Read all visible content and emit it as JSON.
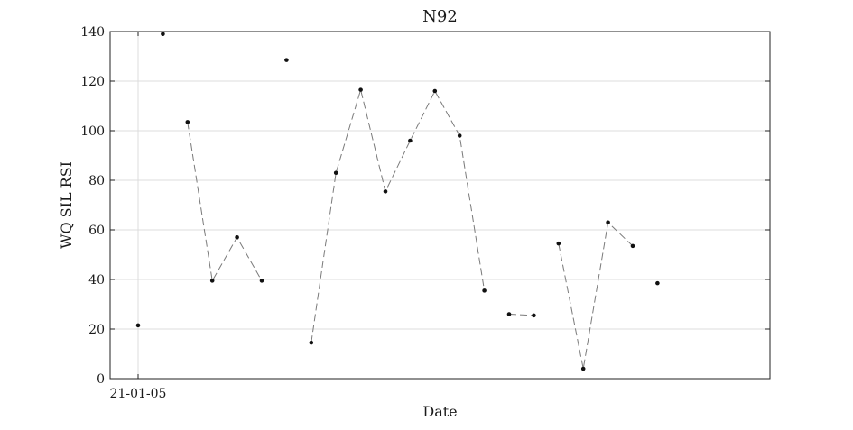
{
  "chart_data": {
    "type": "line",
    "title": "N92",
    "xlabel": "Date",
    "ylabel": "WQ SIL RSI",
    "ylim": [
      0,
      140
    ],
    "yticks": [
      0,
      20,
      40,
      60,
      80,
      100,
      120,
      140
    ],
    "xticks": [
      "21-01-05"
    ],
    "grid": "horizontal",
    "line_style": "dashed",
    "series": [
      {
        "segments": [
          [
            {
              "x": 0,
              "y": 21.5
            }
          ],
          [
            {
              "x": 1,
              "y": 139
            }
          ],
          [
            {
              "x": 2,
              "y": 103.5
            },
            {
              "x": 3,
              "y": 39.5
            },
            {
              "x": 4,
              "y": 57
            },
            {
              "x": 5,
              "y": 39.5
            }
          ],
          [
            {
              "x": 6,
              "y": 128.5
            }
          ],
          [
            {
              "x": 7,
              "y": 14.5
            },
            {
              "x": 8,
              "y": 83
            },
            {
              "x": 9,
              "y": 116.5
            },
            {
              "x": 10,
              "y": 75.5
            },
            {
              "x": 11,
              "y": 96
            },
            {
              "x": 12,
              "y": 116
            },
            {
              "x": 13,
              "y": 98
            },
            {
              "x": 14,
              "y": 35.5
            }
          ],
          [
            {
              "x": 15,
              "y": 26
            },
            {
              "x": 16,
              "y": 25.5
            }
          ],
          [
            {
              "x": 17,
              "y": 54.5
            },
            {
              "x": 18,
              "y": 4
            },
            {
              "x": 19,
              "y": 63
            },
            {
              "x": 20,
              "y": 53.5
            }
          ],
          [
            {
              "x": 21,
              "y": 38.5
            }
          ]
        ]
      }
    ]
  }
}
